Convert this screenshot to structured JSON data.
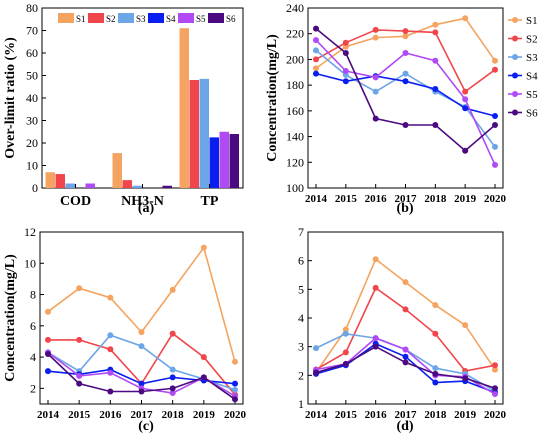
{
  "colors": {
    "S1": "#F4A460",
    "S2": "#F0454A",
    "S3": "#6CA6E8",
    "S4": "#0A1EF0",
    "S5": "#B04AF5",
    "S6": "#4B0A80"
  },
  "chart_data": [
    {
      "id": "a",
      "type": "bar",
      "panel_label": "(a)",
      "ylabel": "Over-limit ratio (%)",
      "ylim": [
        0,
        80
      ],
      "yticks": [
        0,
        10,
        20,
        30,
        40,
        50,
        60,
        70,
        80
      ],
      "categories": [
        "COD",
        "NH3-N",
        "TP"
      ],
      "legend": "top-inside",
      "series": [
        {
          "name": "S1",
          "values": [
            7,
            15.5,
            71
          ]
        },
        {
          "name": "S2",
          "values": [
            6.2,
            3.5,
            48
          ]
        },
        {
          "name": "S3",
          "values": [
            2,
            1,
            48.5
          ]
        },
        {
          "name": "S4",
          "values": [
            0,
            0,
            22.5
          ]
        },
        {
          "name": "S5",
          "values": [
            2,
            0,
            25
          ]
        },
        {
          "name": "S6",
          "values": [
            0,
            1,
            24
          ]
        }
      ]
    },
    {
      "id": "b",
      "type": "line",
      "panel_label": "(b)",
      "ylabel": "Concentration(mg/L)",
      "ylim": [
        100,
        240
      ],
      "yticks": [
        100,
        120,
        140,
        160,
        180,
        200,
        220,
        240
      ],
      "x": [
        "2014",
        "2015",
        "2016",
        "2017",
        "2018",
        "2019",
        "2020"
      ],
      "legend": "right-outside",
      "series": [
        {
          "name": "S1",
          "values": [
            193,
            210,
            217,
            218,
            227,
            232,
            199
          ]
        },
        {
          "name": "S2",
          "values": [
            200,
            213,
            223,
            222,
            221,
            175,
            192
          ]
        },
        {
          "name": "S3",
          "values": [
            207,
            188,
            175,
            189,
            175,
            163,
            132
          ]
        },
        {
          "name": "S4",
          "values": [
            189,
            183,
            187,
            183,
            177,
            162,
            156
          ]
        },
        {
          "name": "S5",
          "values": [
            215,
            191,
            186,
            205,
            199,
            169,
            118
          ]
        },
        {
          "name": "S6",
          "values": [
            224,
            205,
            154,
            149,
            149,
            129,
            149
          ]
        }
      ]
    },
    {
      "id": "c",
      "type": "line",
      "panel_label": "(c)",
      "ylabel": "Concentration(mg/L)",
      "ylim": [
        1,
        12
      ],
      "yticks": [
        2,
        4,
        6,
        8,
        10,
        12
      ],
      "x": [
        "2014",
        "2015",
        "2016",
        "2017",
        "2018",
        "2019",
        "2020"
      ],
      "series": [
        {
          "name": "S1",
          "values": [
            6.9,
            8.4,
            7.8,
            5.6,
            8.3,
            11.0,
            3.7
          ]
        },
        {
          "name": "S2",
          "values": [
            5.1,
            5.1,
            4.5,
            2.3,
            5.5,
            4.0,
            1.6
          ]
        },
        {
          "name": "S3",
          "values": [
            4.3,
            3.1,
            5.4,
            4.7,
            3.2,
            2.6,
            1.9
          ]
        },
        {
          "name": "S4",
          "values": [
            3.1,
            2.9,
            3.2,
            2.3,
            2.7,
            2.5,
            2.3
          ]
        },
        {
          "name": "S5",
          "values": [
            4.3,
            2.8,
            3.0,
            2.0,
            1.7,
            2.7,
            1.5
          ]
        },
        {
          "name": "S6",
          "values": [
            4.2,
            2.3,
            1.8,
            1.8,
            2.0,
            2.7,
            1.3
          ]
        }
      ]
    },
    {
      "id": "d",
      "type": "line",
      "panel_label": "(d)",
      "ylabel": "",
      "ylim": [
        1,
        7
      ],
      "yticks": [
        1,
        2,
        3,
        4,
        5,
        6,
        7
      ],
      "x": [
        "2014",
        "2015",
        "2016",
        "2017",
        "2018",
        "2019",
        "2020"
      ],
      "series": [
        {
          "name": "S1",
          "values": [
            2.1,
            3.6,
            6.05,
            5.25,
            4.45,
            3.75,
            2.2
          ]
        },
        {
          "name": "S2",
          "values": [
            2.2,
            2.8,
            5.05,
            4.3,
            3.45,
            2.15,
            2.35
          ]
        },
        {
          "name": "S3",
          "values": [
            2.95,
            3.45,
            3.3,
            2.9,
            2.25,
            2.05,
            1.45
          ]
        },
        {
          "name": "S4",
          "values": [
            2.05,
            2.35,
            3.1,
            2.65,
            1.75,
            1.8,
            1.4
          ]
        },
        {
          "name": "S5",
          "values": [
            2.2,
            2.4,
            3.3,
            2.9,
            2.0,
            1.95,
            1.35
          ]
        },
        {
          "name": "S6",
          "values": [
            2.1,
            2.4,
            3.0,
            2.45,
            2.05,
            1.9,
            1.55
          ]
        }
      ]
    }
  ]
}
